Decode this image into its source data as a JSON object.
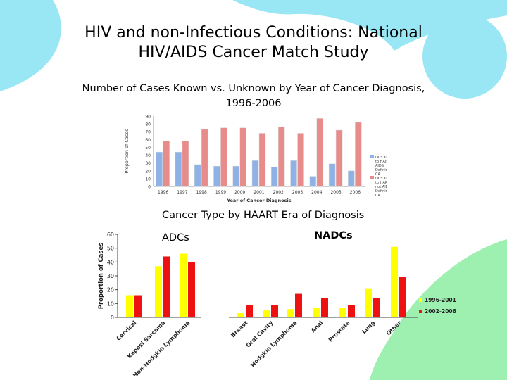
{
  "slide": {
    "title_line1": "HIV and non-Infectious Conditions: National",
    "title_line2": "HIV/AIDS Cancer Match Study",
    "subtitle_line1": "Number of Cases Known vs. Unknown by Year of Cancer Diagnosis,",
    "subtitle_line2": "1996-2006",
    "caption": "Cancer Type by HAART Era of Diagnosis",
    "adcs_label": "ADCs",
    "nadcs_label": "NADCs"
  },
  "colors": {
    "accent_cyan": "#99e6f4",
    "accent_green": "#9ef0b0",
    "known_blue": "#8fb2e6",
    "unknown_red": "#e88b8b",
    "era1_yellow": "#ffff00",
    "era2_red": "#ee1111"
  },
  "chart_data": [
    {
      "type": "bar",
      "title": "",
      "xlabel": "Year of Cancer Diagnosis",
      "ylabel": "Proportion of Cases",
      "ylim": [
        0,
        90
      ],
      "yticks": [
        "0",
        "10",
        "20",
        "30",
        "40",
        "50",
        "60",
        "70",
        "80",
        "90"
      ],
      "categories": [
        "1996",
        "1997",
        "1998",
        "1999",
        "2000",
        "2001",
        "2002",
        "2003",
        "2004",
        "2005",
        "2006"
      ],
      "series": [
        {
          "name": "DCS Known to HAIS as AIDS Defining CA",
          "values": [
            44,
            44,
            28,
            26,
            26,
            33,
            25,
            33,
            13,
            29,
            20
          ]
        },
        {
          "name": "DCS Known to HARS not AIDS Defining CA",
          "values": [
            58,
            58,
            73,
            75,
            75,
            68,
            76,
            68,
            87,
            72,
            82
          ]
        }
      ],
      "legend_position": "right",
      "grid": false
    },
    {
      "type": "bar",
      "title": "",
      "xlabel": "",
      "ylabel": "Proportion of Cases",
      "ylim": [
        0,
        60
      ],
      "yticks": [
        "0",
        "10",
        "20",
        "30",
        "40",
        "50",
        "60"
      ],
      "categories": [
        "Cervical",
        "Kaposi Sarcoma",
        "Non-Hodgkin Lymphoma",
        "Breast",
        "Oral Cavity",
        "Hodgkin Lymphoma",
        "Anal",
        "Prostate",
        "Lung",
        "Other"
      ],
      "series": [
        {
          "name": "1996-2001",
          "values": [
            16,
            37,
            46,
            3,
            5,
            6,
            7,
            7,
            21,
            51
          ]
        },
        {
          "name": "2002-2006",
          "values": [
            16,
            44,
            40,
            9,
            9,
            17,
            14,
            9,
            14,
            29
          ]
        }
      ],
      "legend_position": "right",
      "grid": false
    }
  ]
}
